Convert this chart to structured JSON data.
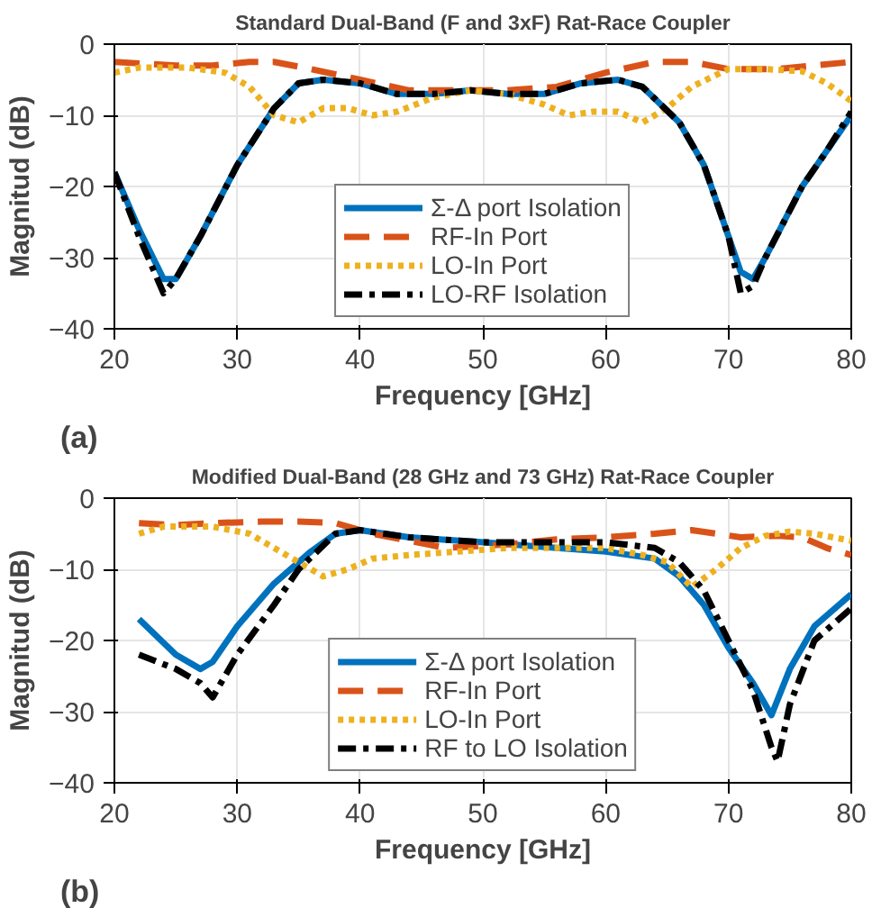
{
  "chart_data": [
    {
      "type": "line",
      "title": "Standard Dual-Band (F and 3xF) Rat-Race Coupler",
      "xlabel": "Frequency [GHz]",
      "ylabel": "Magnitud (dB)",
      "annotations": [
        "(a)"
      ],
      "xlim": [
        20,
        80
      ],
      "ylim": [
        -40,
        0
      ],
      "xticks": [
        20,
        30,
        40,
        50,
        60,
        70,
        80
      ],
      "yticks": [
        -40,
        -30,
        -20,
        -10,
        0
      ],
      "grid": true,
      "legend": "bottom",
      "marker": "none",
      "series": [
        {
          "name": "Σ-Δ port Isolation",
          "color": "#0072bd",
          "line_style": "solid",
          "x": [
            20,
            22,
            24,
            25,
            27,
            30,
            33,
            35,
            37,
            40,
            43,
            46,
            49,
            52,
            55,
            58,
            61,
            63,
            66,
            68,
            70,
            71,
            72,
            73,
            76,
            78,
            80
          ],
          "values": [
            -18,
            -26,
            -33,
            -33,
            -27,
            -17,
            -9,
            -5.5,
            -5,
            -5.5,
            -7,
            -7,
            -6.5,
            -7,
            -7,
            -5.5,
            -5,
            -6,
            -11,
            -17,
            -27,
            -32,
            -33,
            -30,
            -20,
            -15,
            -10
          ]
        },
        {
          "name": "RF-In Port",
          "color": "#d95319",
          "line_style": "dashed",
          "x": [
            20,
            25,
            28,
            31,
            33,
            36,
            40,
            44,
            48,
            52,
            56,
            60,
            64,
            67,
            70,
            74,
            77,
            80
          ],
          "values": [
            -2.5,
            -3,
            -3,
            -2.5,
            -2.5,
            -3.5,
            -5,
            -6.5,
            -6.5,
            -6.5,
            -6,
            -4,
            -2.5,
            -2.5,
            -3.5,
            -3.5,
            -3,
            -2.5
          ]
        },
        {
          "name": "LO-In Port",
          "color": "#edb120",
          "line_style": "dotted",
          "x": [
            20,
            22,
            26,
            29,
            31,
            33,
            35,
            37,
            39,
            41,
            43,
            46,
            49,
            52,
            55,
            57,
            59,
            61,
            63,
            65,
            67,
            70,
            73,
            76,
            78,
            80
          ],
          "values": [
            -4,
            -3.3,
            -3.3,
            -4,
            -6,
            -10,
            -11,
            -9,
            -9,
            -10,
            -9.5,
            -7.5,
            -6.5,
            -7,
            -8.5,
            -10,
            -9.5,
            -9.5,
            -11,
            -9,
            -6,
            -3.5,
            -3.5,
            -3.8,
            -5.5,
            -8
          ]
        },
        {
          "name": "LO-RF Isolation",
          "color": "#000000",
          "line_style": "dashdot",
          "x": [
            20,
            22,
            24,
            25,
            27,
            30,
            33,
            35,
            37,
            40,
            43,
            46,
            49,
            52,
            55,
            58,
            61,
            63,
            66,
            68,
            70,
            71,
            72,
            73,
            76,
            78,
            80
          ],
          "values": [
            -18,
            -27,
            -35,
            -33,
            -27,
            -17,
            -9,
            -5.5,
            -5,
            -5.5,
            -7,
            -7,
            -6.5,
            -7,
            -7,
            -5.5,
            -5,
            -6,
            -11,
            -17,
            -27,
            -35,
            -34,
            -30,
            -20,
            -15,
            -9.5
          ]
        }
      ]
    },
    {
      "type": "line",
      "title": "Modified Dual-Band (28 GHz and 73 GHz) Rat-Race Coupler",
      "xlabel": "Frequency [GHz]",
      "ylabel": "Magnitud (dB)",
      "annotations": [
        "(b)"
      ],
      "xlim": [
        20,
        80
      ],
      "ylim": [
        -40,
        0
      ],
      "xticks": [
        20,
        30,
        40,
        50,
        60,
        70,
        80
      ],
      "yticks": [
        -40,
        -30,
        -20,
        -10,
        0
      ],
      "grid": true,
      "legend": "bottom",
      "marker": "none",
      "series": [
        {
          "name": "Σ-Δ port Isolation",
          "color": "#0072bd",
          "line_style": "solid",
          "x": [
            22,
            25,
            27,
            28,
            30,
            33,
            36,
            38,
            40,
            44,
            50,
            56,
            60,
            64,
            66,
            68,
            70,
            72,
            73.5,
            75,
            77,
            80
          ],
          "values": [
            -17,
            -22,
            -24,
            -23,
            -18,
            -12,
            -7.5,
            -5,
            -4.5,
            -5.5,
            -6.2,
            -7,
            -7.5,
            -8.5,
            -11,
            -15,
            -21,
            -26,
            -30.5,
            -24,
            -18,
            -13.5
          ]
        },
        {
          "name": "RF-In Port",
          "color": "#d95319",
          "line_style": "dashed",
          "x": [
            22,
            25,
            28,
            32,
            35,
            38,
            41,
            44,
            47,
            52,
            56,
            60,
            64,
            67,
            69,
            71,
            74,
            76,
            78,
            80
          ],
          "values": [
            -3.5,
            -3.8,
            -3.5,
            -3.3,
            -3.3,
            -3.5,
            -5,
            -6,
            -7,
            -6.5,
            -5.8,
            -5.5,
            -5,
            -4.5,
            -5,
            -5.5,
            -5.3,
            -5.5,
            -7,
            -8
          ]
        },
        {
          "name": "LO-In Port",
          "color": "#edb120",
          "line_style": "dotted",
          "x": [
            22,
            24,
            28,
            31,
            34,
            37,
            39,
            41,
            44,
            48,
            52,
            56,
            60,
            63,
            65,
            67,
            69,
            71,
            73,
            75,
            77,
            80
          ],
          "values": [
            -5,
            -4,
            -4,
            -5,
            -8,
            -11,
            -10,
            -8.5,
            -8,
            -7.5,
            -7,
            -7,
            -7,
            -8,
            -9,
            -12.5,
            -10,
            -7,
            -5.3,
            -4.7,
            -5,
            -6
          ]
        },
        {
          "name": "RF to LO Isolation",
          "color": "#000000",
          "line_style": "dashdot",
          "x": [
            22,
            25,
            27,
            28,
            30,
            33,
            35,
            38,
            40,
            44,
            50,
            56,
            60,
            64,
            66,
            68,
            70,
            72,
            73.5,
            74,
            75,
            77,
            80
          ],
          "values": [
            -22,
            -24,
            -26,
            -28,
            -22,
            -15,
            -10,
            -5,
            -4.5,
            -5.5,
            -6.2,
            -6.2,
            -6.2,
            -7,
            -9,
            -13,
            -20,
            -27,
            -35,
            -37,
            -29,
            -20,
            -15.5
          ]
        }
      ]
    }
  ]
}
